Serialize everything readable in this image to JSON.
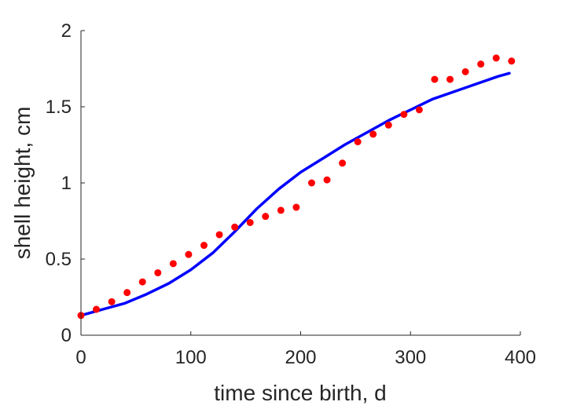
{
  "chart_data": {
    "type": "scatter",
    "xlabel": "time since birth, d",
    "ylabel": "shell height, cm",
    "xlim": [
      0,
      400
    ],
    "ylim": [
      0,
      2
    ],
    "xticks": [
      0,
      100,
      200,
      300,
      400
    ],
    "yticks": [
      0,
      0.5,
      1,
      1.5,
      2
    ],
    "xtick_labels": [
      "0",
      "100",
      "200",
      "300",
      "400"
    ],
    "ytick_labels": [
      "0",
      "0.5",
      "1",
      "1.5",
      "2"
    ],
    "grid": false,
    "series": [
      {
        "kind": "points",
        "color": "#ff0000",
        "x": [
          0,
          14,
          28,
          42,
          56,
          70,
          84,
          98,
          112,
          126,
          140,
          154,
          168,
          182,
          196,
          210,
          224,
          238,
          252,
          266,
          280,
          294,
          308,
          322,
          336,
          350,
          364,
          378,
          392
        ],
        "y": [
          0.13,
          0.17,
          0.22,
          0.28,
          0.35,
          0.41,
          0.47,
          0.53,
          0.59,
          0.66,
          0.71,
          0.74,
          0.78,
          0.82,
          0.84,
          1.0,
          1.02,
          1.13,
          1.27,
          1.32,
          1.38,
          1.45,
          1.48,
          1.68,
          1.68,
          1.73,
          1.78,
          1.82,
          1.8
        ]
      },
      {
        "kind": "line",
        "color": "#0000ff",
        "x": [
          0,
          20,
          40,
          60,
          80,
          100,
          120,
          140,
          160,
          180,
          200,
          220,
          240,
          260,
          280,
          300,
          320,
          340,
          360,
          380,
          390
        ],
        "y": [
          0.13,
          0.17,
          0.21,
          0.27,
          0.34,
          0.43,
          0.54,
          0.68,
          0.83,
          0.96,
          1.07,
          1.16,
          1.25,
          1.33,
          1.41,
          1.48,
          1.55,
          1.6,
          1.65,
          1.7,
          1.72
        ]
      }
    ]
  }
}
